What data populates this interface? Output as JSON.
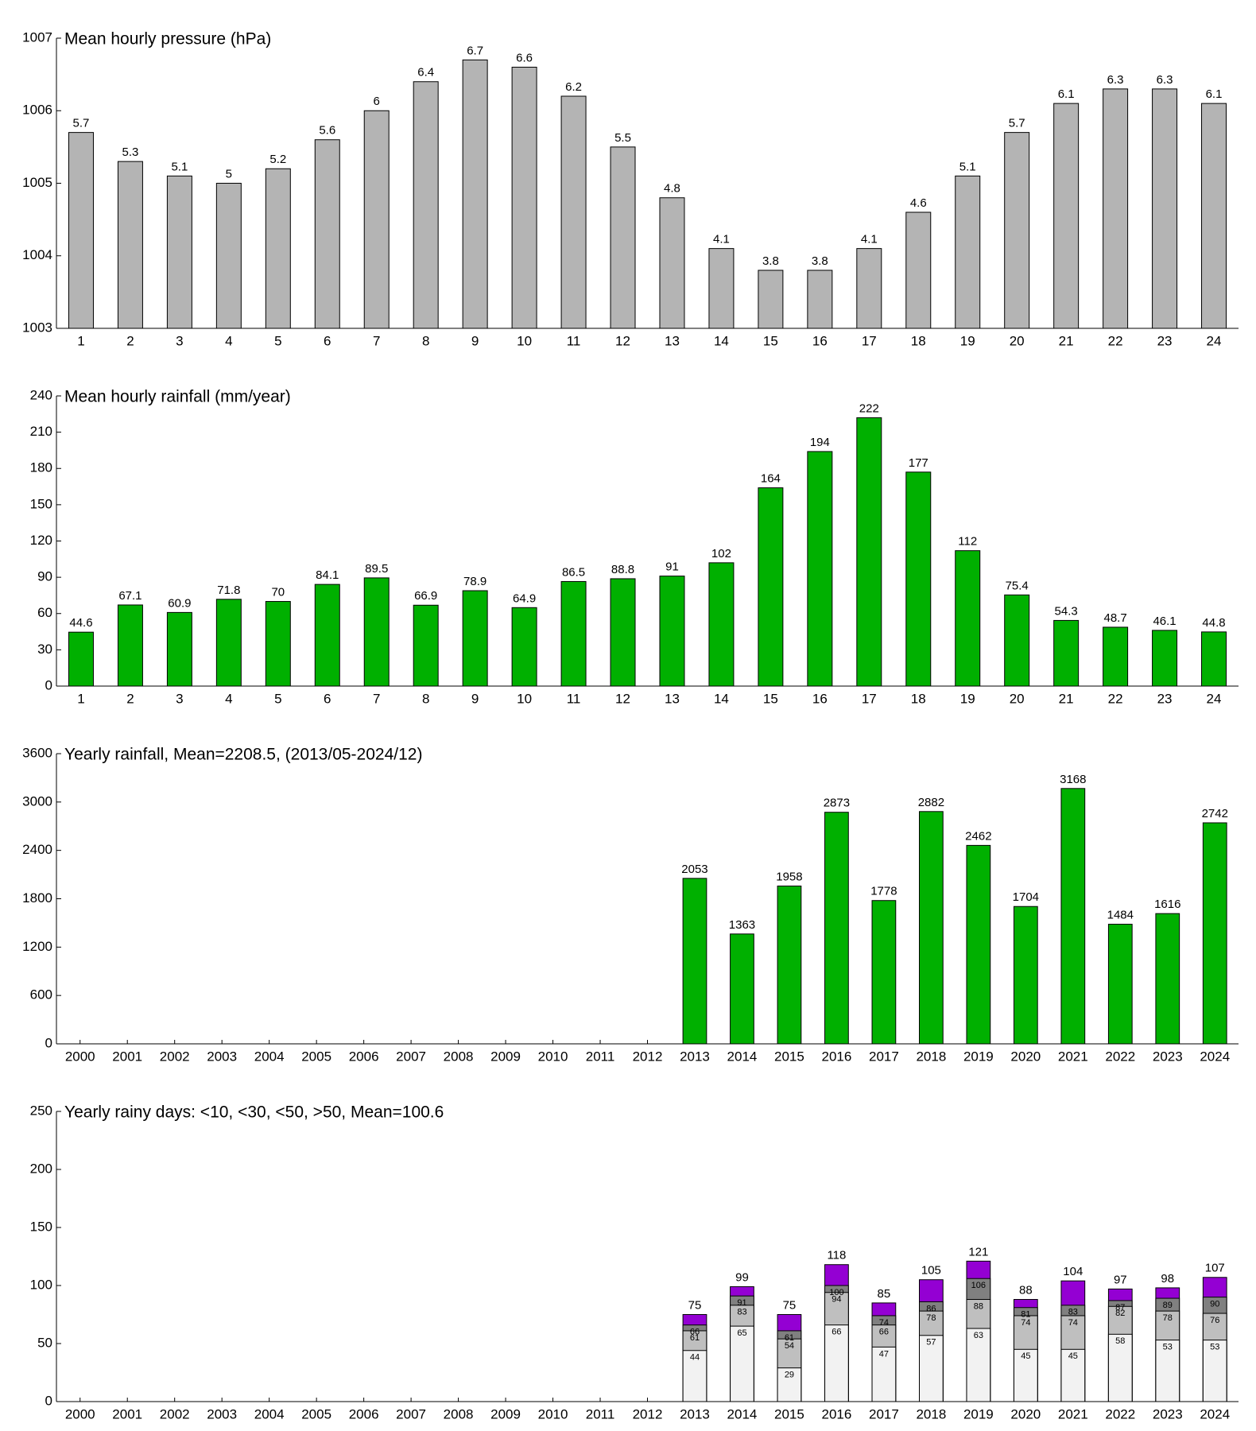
{
  "chart_data": [
    {
      "type": "bar",
      "title": "Mean hourly pressure (hPa)",
      "categories": [
        1,
        2,
        3,
        4,
        5,
        6,
        7,
        8,
        9,
        10,
        11,
        12,
        13,
        14,
        15,
        16,
        17,
        18,
        19,
        20,
        21,
        22,
        23,
        24
      ],
      "values": [
        1005.7,
        1005.3,
        1005.1,
        1005,
        1005.2,
        1005.6,
        1006,
        1006.4,
        1006.7,
        1006.6,
        1006.2,
        1005.5,
        1004.8,
        1004.1,
        1003.8,
        1003.8,
        1004.1,
        1004.6,
        1005.1,
        1005.7,
        1006.1,
        1006.3,
        1006.3,
        1006.1
      ],
      "value_labels": [
        "5.7",
        "5.3",
        "5.1",
        "5",
        "5.2",
        "5.6",
        "6",
        "6.4",
        "6.7",
        "6.6",
        "6.2",
        "5.5",
        "4.8",
        "4.1",
        "3.8",
        "3.8",
        "4.1",
        "4.6",
        "5.1",
        "5.7",
        "6.1",
        "6.3",
        "6.3",
        "6.1"
      ],
      "color": "#b4b4b4",
      "ylim": [
        1003,
        1007
      ],
      "yticks": [
        1003,
        1004,
        1005,
        1006,
        1007
      ]
    },
    {
      "type": "bar",
      "title": "Mean hourly rainfall (mm/year)",
      "categories": [
        1,
        2,
        3,
        4,
        5,
        6,
        7,
        8,
        9,
        10,
        11,
        12,
        13,
        14,
        15,
        16,
        17,
        18,
        19,
        20,
        21,
        22,
        23,
        24
      ],
      "values": [
        44.6,
        67.1,
        60.9,
        71.8,
        70,
        84.1,
        89.5,
        66.9,
        78.9,
        64.9,
        86.5,
        88.8,
        91,
        102,
        164,
        194,
        222,
        177,
        112,
        75.4,
        54.3,
        48.7,
        46.1,
        44.8
      ],
      "color": "#00b000",
      "ylim": [
        0,
        240
      ],
      "yticks": [
        0,
        30,
        60,
        90,
        120,
        150,
        180,
        210,
        240
      ]
    },
    {
      "type": "bar",
      "title": "Yearly rainfall, Mean=2208.5, (2013/05-2024/12)",
      "categories": [
        "2000",
        "2001",
        "2002",
        "2003",
        "2004",
        "2005",
        "2006",
        "2007",
        "2008",
        "2009",
        "2010",
        "2011",
        "2012",
        "2013",
        "2014",
        "2015",
        "2016",
        "2017",
        "2018",
        "2019",
        "2020",
        "2021",
        "2022",
        "2023",
        "2024"
      ],
      "values": [
        null,
        null,
        null,
        null,
        null,
        null,
        null,
        null,
        null,
        null,
        null,
        null,
        null,
        2053,
        1363,
        1958,
        2873,
        1778,
        2882,
        2462,
        1704,
        3168,
        1484,
        1616,
        2742
      ],
      "color": "#00b000",
      "ylim": [
        0,
        3600
      ],
      "yticks": [
        0,
        600,
        1200,
        1800,
        2400,
        3000,
        3600
      ]
    },
    {
      "type": "overlap_bar",
      "title": "Yearly rainy days: <10, <30, <50, >50, Mean=100.6",
      "categories": [
        "2000",
        "2001",
        "2002",
        "2003",
        "2004",
        "2005",
        "2006",
        "2007",
        "2008",
        "2009",
        "2010",
        "2011",
        "2012",
        "2013",
        "2014",
        "2015",
        "2016",
        "2017",
        "2018",
        "2019",
        "2020",
        "2021",
        "2022",
        "2023",
        "2024"
      ],
      "series": [
        {
          "color": "#f2f2f2",
          "values": [
            null,
            null,
            null,
            null,
            null,
            null,
            null,
            null,
            null,
            null,
            null,
            null,
            null,
            44,
            65,
            29,
            66,
            47,
            57,
            63,
            45,
            45,
            58,
            53,
            53
          ]
        },
        {
          "color": "#bfbfbf",
          "values": [
            null,
            null,
            null,
            null,
            null,
            null,
            null,
            null,
            null,
            null,
            null,
            null,
            null,
            61,
            83,
            54,
            94,
            66,
            78,
            88,
            74,
            74,
            82,
            78,
            76
          ]
        },
        {
          "color": "#808080",
          "values": [
            null,
            null,
            null,
            null,
            null,
            null,
            null,
            null,
            null,
            null,
            null,
            null,
            null,
            66,
            91,
            61,
            100,
            74,
            86,
            106,
            81,
            83,
            87,
            89,
            90
          ]
        },
        {
          "color": "#9400d3",
          "values": [
            null,
            null,
            null,
            null,
            null,
            null,
            null,
            null,
            null,
            null,
            null,
            null,
            null,
            75,
            99,
            75,
            118,
            85,
            105,
            121,
            88,
            104,
            97,
            98,
            107
          ]
        }
      ],
      "ylim": [
        0,
        250
      ],
      "yticks": [
        0,
        50,
        100,
        150,
        200,
        250
      ]
    }
  ]
}
